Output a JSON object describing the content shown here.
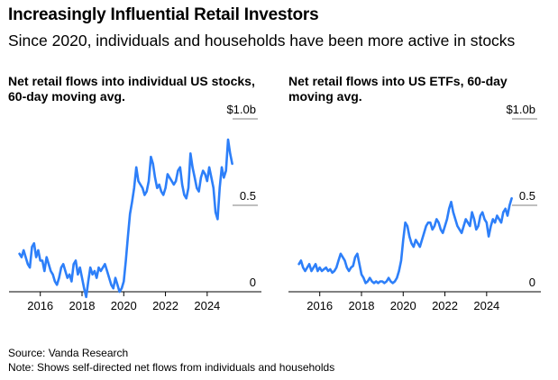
{
  "title": "Increasingly Influential Retail Investors",
  "subtitle": "Since 2020, individuals and households have been more active in stocks",
  "footer": {
    "source": "Source: Vanda Research",
    "note": "Note: Shows self-directed net flows from individuals and households"
  },
  "colors": {
    "line": "#2D7FF9",
    "axis": "#000000",
    "grid": "#7f7f7f"
  },
  "chart_data": [
    {
      "type": "line",
      "title_lines": [
        "Net retail flows into individual US stocks,",
        "60-day moving avg."
      ],
      "xlabel": "",
      "ylabel": "",
      "xlim": [
        2014.5,
        2026.6
      ],
      "ylim": [
        0,
        1.0
      ],
      "grid": "horizontal",
      "y_ticks": [
        {
          "value": 1.0,
          "label": "$1.0b"
        },
        {
          "value": 0.5,
          "label": "0.5"
        },
        {
          "value": 0.0,
          "label": "0"
        }
      ],
      "x_ticks": [
        {
          "value": 2016,
          "label": "2016"
        },
        {
          "value": 2018,
          "label": "2018"
        },
        {
          "value": 2020,
          "label": "2020"
        },
        {
          "value": 2022,
          "label": "2022"
        },
        {
          "value": 2024,
          "label": "2024"
        }
      ],
      "series": [
        {
          "name": "Individual US stocks",
          "x": [
            2015.0,
            2015.1,
            2015.2,
            2015.3,
            2015.4,
            2015.5,
            2015.6,
            2015.7,
            2015.8,
            2015.9,
            2016.0,
            2016.1,
            2016.2,
            2016.3,
            2016.4,
            2016.5,
            2016.6,
            2016.7,
            2016.8,
            2016.9,
            2017.0,
            2017.1,
            2017.2,
            2017.3,
            2017.4,
            2017.5,
            2017.6,
            2017.7,
            2017.8,
            2017.9,
            2018.0,
            2018.1,
            2018.2,
            2018.3,
            2018.4,
            2018.5,
            2018.6,
            2018.7,
            2018.8,
            2018.9,
            2019.0,
            2019.1,
            2019.2,
            2019.3,
            2019.4,
            2019.5,
            2019.6,
            2019.7,
            2019.8,
            2019.9,
            2020.0,
            2020.1,
            2020.2,
            2020.3,
            2020.4,
            2020.5,
            2020.6,
            2020.7,
            2020.8,
            2020.9,
            2021.0,
            2021.1,
            2021.2,
            2021.3,
            2021.4,
            2021.5,
            2021.6,
            2021.7,
            2021.8,
            2021.9,
            2022.0,
            2022.1,
            2022.2,
            2022.3,
            2022.4,
            2022.5,
            2022.6,
            2022.7,
            2022.8,
            2022.9,
            2023.0,
            2023.1,
            2023.2,
            2023.3,
            2023.4,
            2023.5,
            2023.6,
            2023.7,
            2023.8,
            2023.9,
            2024.0,
            2024.1,
            2024.2,
            2024.3,
            2024.4,
            2024.5,
            2024.6,
            2024.7,
            2024.8,
            2024.9,
            2025.0,
            2025.1,
            2025.2
          ],
          "values": [
            0.22,
            0.2,
            0.24,
            0.2,
            0.16,
            0.14,
            0.26,
            0.28,
            0.2,
            0.24,
            0.18,
            0.18,
            0.12,
            0.2,
            0.16,
            0.12,
            0.1,
            0.06,
            0.04,
            0.08,
            0.14,
            0.16,
            0.12,
            0.08,
            0.1,
            0.06,
            0.16,
            0.18,
            0.1,
            0.14,
            0.08,
            0.02,
            -0.03,
            0.06,
            0.14,
            0.1,
            0.12,
            0.08,
            0.14,
            0.12,
            0.14,
            0.16,
            0.12,
            0.08,
            0.04,
            0.02,
            0.08,
            0.04,
            0.0,
            0.02,
            0.06,
            0.18,
            0.32,
            0.45,
            0.52,
            0.6,
            0.72,
            0.64,
            0.62,
            0.6,
            0.56,
            0.58,
            0.64,
            0.78,
            0.74,
            0.66,
            0.6,
            0.62,
            0.58,
            0.56,
            0.6,
            0.68,
            0.66,
            0.64,
            0.62,
            0.64,
            0.7,
            0.72,
            0.62,
            0.56,
            0.54,
            0.6,
            0.8,
            0.72,
            0.66,
            0.6,
            0.58,
            0.66,
            0.7,
            0.68,
            0.64,
            0.72,
            0.66,
            0.6,
            0.46,
            0.42,
            0.6,
            0.72,
            0.66,
            0.7,
            0.88,
            0.8,
            0.74
          ]
        }
      ]
    },
    {
      "type": "line",
      "title_lines": [
        "Net retail flows into US ETFs, 60-day",
        "moving avg."
      ],
      "xlabel": "",
      "ylabel": "",
      "xlim": [
        2014.5,
        2026.6
      ],
      "ylim": [
        0,
        1.0
      ],
      "grid": "horizontal",
      "y_ticks": [
        {
          "value": 1.0,
          "label": "$1.0b"
        },
        {
          "value": 0.5,
          "label": "0.5"
        },
        {
          "value": 0.0,
          "label": "0"
        }
      ],
      "x_ticks": [
        {
          "value": 2016,
          "label": "2016"
        },
        {
          "value": 2018,
          "label": "2018"
        },
        {
          "value": 2020,
          "label": "2020"
        },
        {
          "value": 2022,
          "label": "2022"
        },
        {
          "value": 2024,
          "label": "2024"
        }
      ],
      "series": [
        {
          "name": "US ETFs",
          "x": [
            2015.0,
            2015.1,
            2015.2,
            2015.3,
            2015.4,
            2015.5,
            2015.6,
            2015.7,
            2015.8,
            2015.9,
            2016.0,
            2016.1,
            2016.2,
            2016.3,
            2016.4,
            2016.5,
            2016.6,
            2016.7,
            2016.8,
            2016.9,
            2017.0,
            2017.1,
            2017.2,
            2017.3,
            2017.4,
            2017.5,
            2017.6,
            2017.7,
            2017.8,
            2017.9,
            2018.0,
            2018.1,
            2018.2,
            2018.3,
            2018.4,
            2018.5,
            2018.6,
            2018.7,
            2018.8,
            2018.9,
            2019.0,
            2019.1,
            2019.2,
            2019.3,
            2019.4,
            2019.5,
            2019.6,
            2019.7,
            2019.8,
            2019.9,
            2020.0,
            2020.1,
            2020.2,
            2020.3,
            2020.4,
            2020.5,
            2020.6,
            2020.7,
            2020.8,
            2020.9,
            2021.0,
            2021.1,
            2021.2,
            2021.3,
            2021.4,
            2021.5,
            2021.6,
            2021.7,
            2021.8,
            2021.9,
            2022.0,
            2022.1,
            2022.2,
            2022.3,
            2022.4,
            2022.5,
            2022.6,
            2022.7,
            2022.8,
            2022.9,
            2023.0,
            2023.1,
            2023.2,
            2023.3,
            2023.4,
            2023.5,
            2023.6,
            2023.7,
            2023.8,
            2023.9,
            2024.0,
            2024.1,
            2024.2,
            2024.3,
            2024.4,
            2024.5,
            2024.6,
            2024.7,
            2024.8,
            2024.9,
            2025.0,
            2025.1,
            2025.2
          ],
          "values": [
            0.16,
            0.18,
            0.14,
            0.12,
            0.14,
            0.16,
            0.12,
            0.14,
            0.16,
            0.12,
            0.14,
            0.12,
            0.13,
            0.14,
            0.12,
            0.13,
            0.11,
            0.12,
            0.14,
            0.18,
            0.22,
            0.2,
            0.18,
            0.14,
            0.12,
            0.14,
            0.15,
            0.2,
            0.22,
            0.16,
            0.1,
            0.08,
            0.05,
            0.06,
            0.08,
            0.06,
            0.05,
            0.06,
            0.05,
            0.06,
            0.06,
            0.05,
            0.06,
            0.08,
            0.06,
            0.05,
            0.06,
            0.08,
            0.12,
            0.18,
            0.3,
            0.4,
            0.38,
            0.32,
            0.28,
            0.26,
            0.3,
            0.28,
            0.26,
            0.3,
            0.34,
            0.38,
            0.4,
            0.4,
            0.36,
            0.38,
            0.42,
            0.4,
            0.36,
            0.34,
            0.38,
            0.42,
            0.48,
            0.52,
            0.46,
            0.42,
            0.38,
            0.36,
            0.34,
            0.38,
            0.42,
            0.4,
            0.38,
            0.46,
            0.42,
            0.36,
            0.38,
            0.44,
            0.46,
            0.42,
            0.4,
            0.32,
            0.38,
            0.42,
            0.4,
            0.44,
            0.42,
            0.4,
            0.46,
            0.48,
            0.44,
            0.5,
            0.54
          ]
        }
      ]
    }
  ]
}
